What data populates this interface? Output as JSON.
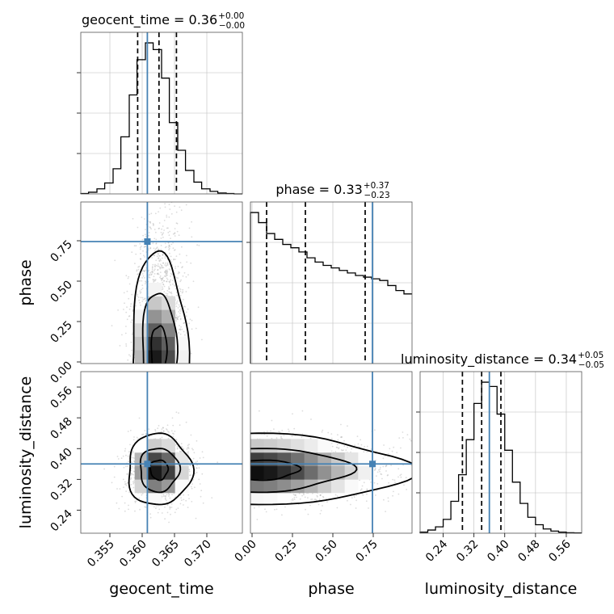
{
  "chart_data": {
    "type": "corner",
    "parameters": [
      "geocent_time",
      "phase",
      "luminosity_distance"
    ],
    "axis_labels": {
      "geocent_time": "geocent_time",
      "phase": "phase",
      "luminosity_distance": "luminosity_distance"
    },
    "ranges": {
      "geocent_time": [
        0.3505,
        0.3755
      ],
      "phase": [
        -0.01,
        0.99
      ],
      "luminosity_distance": [
        0.18,
        0.6
      ]
    },
    "ticks": {
      "geocent_time": {
        "values": [
          0.355,
          0.36,
          0.365,
          0.37
        ],
        "labels": [
          "0.355",
          "0.360",
          "0.365",
          "0.370"
        ]
      },
      "phase": {
        "values": [
          0.0,
          0.25,
          0.5,
          0.75
        ],
        "labels": [
          "0.00",
          "0.25",
          "0.50",
          "0.75"
        ]
      },
      "luminosity_distance": {
        "values": [
          0.24,
          0.32,
          0.4,
          0.48,
          0.56
        ],
        "labels": [
          "0.24",
          "0.32",
          "0.40",
          "0.48",
          "0.56"
        ]
      }
    },
    "truths": {
      "geocent_time": 0.3608,
      "phase": 0.745,
      "luminosity_distance": 0.36
    },
    "titles": {
      "geocent_time": {
        "text": "geocent_time = 0.36",
        "sup": "+0.00",
        "sub": "−0.00"
      },
      "phase": {
        "text": "phase = 0.33",
        "sup": "+0.37",
        "sub": "−0.23"
      },
      "luminosity_distance": {
        "text": "luminosity_distance = 0.34",
        "sup": "+0.05",
        "sub": "−0.05"
      }
    },
    "marginals": {
      "geocent_time": {
        "quantiles": [
          0.3593,
          0.3626,
          0.3653
        ],
        "bin_edges": [
          0.3505,
          0.3517,
          0.353,
          0.3542,
          0.3555,
          0.3567,
          0.358,
          0.3592,
          0.3605,
          0.3617,
          0.363,
          0.3642,
          0.3655,
          0.3667,
          0.368,
          0.3692,
          0.3705,
          0.3717,
          0.373,
          0.3742,
          0.3755
        ],
        "counts": [
          0.5,
          2,
          6,
          13,
          30,
          68,
          118,
          160,
          180,
          172,
          138,
          85,
          52,
          28,
          14,
          6,
          3,
          1,
          0.5,
          0
        ]
      },
      "phase": {
        "quantiles": [
          0.09,
          0.33,
          0.7
        ],
        "bin_edges": [
          -0.01,
          0.04,
          0.09,
          0.14,
          0.19,
          0.24,
          0.29,
          0.34,
          0.39,
          0.44,
          0.49,
          0.54,
          0.59,
          0.64,
          0.69,
          0.74,
          0.79,
          0.84,
          0.89,
          0.94,
          0.99
        ],
        "counts": [
          180,
          168,
          155,
          148,
          142,
          138,
          133,
          126,
          121,
          117,
          114,
          111,
          108,
          105,
          103,
          101,
          99,
          93,
          87,
          83
        ]
      },
      "luminosity_distance": {
        "quantiles": [
          0.29,
          0.34,
          0.39
        ],
        "bin_edges": [
          0.18,
          0.2,
          0.22,
          0.24,
          0.26,
          0.28,
          0.3,
          0.32,
          0.34,
          0.36,
          0.38,
          0.4,
          0.42,
          0.44,
          0.46,
          0.48,
          0.5,
          0.52,
          0.54,
          0.56,
          0.58,
          0.6
        ],
        "counts": [
          1,
          3,
          6,
          13,
          30,
          55,
          88,
          122,
          142,
          138,
          112,
          78,
          48,
          28,
          15,
          8,
          4,
          2,
          1,
          0.5,
          0.3
        ]
      }
    },
    "joint": {
      "phase_vs_geocent_time": {
        "x": "geocent_time",
        "y": "phase",
        "center": [
          0.3626,
          0.33
        ],
        "contour_levels": [
          "39%",
          "86%",
          "99%"
        ]
      },
      "luminosity_distance_vs_geocent_time": {
        "x": "geocent_time",
        "y": "luminosity_distance",
        "center": [
          0.3626,
          0.345
        ],
        "contour_levels": [
          "39%",
          "86%",
          "99%"
        ]
      },
      "luminosity_distance_vs_phase": {
        "x": "phase",
        "y": "luminosity_distance",
        "center": [
          0.06,
          0.345
        ],
        "contour_levels": [
          "39%",
          "86%",
          "99%"
        ]
      }
    }
  }
}
